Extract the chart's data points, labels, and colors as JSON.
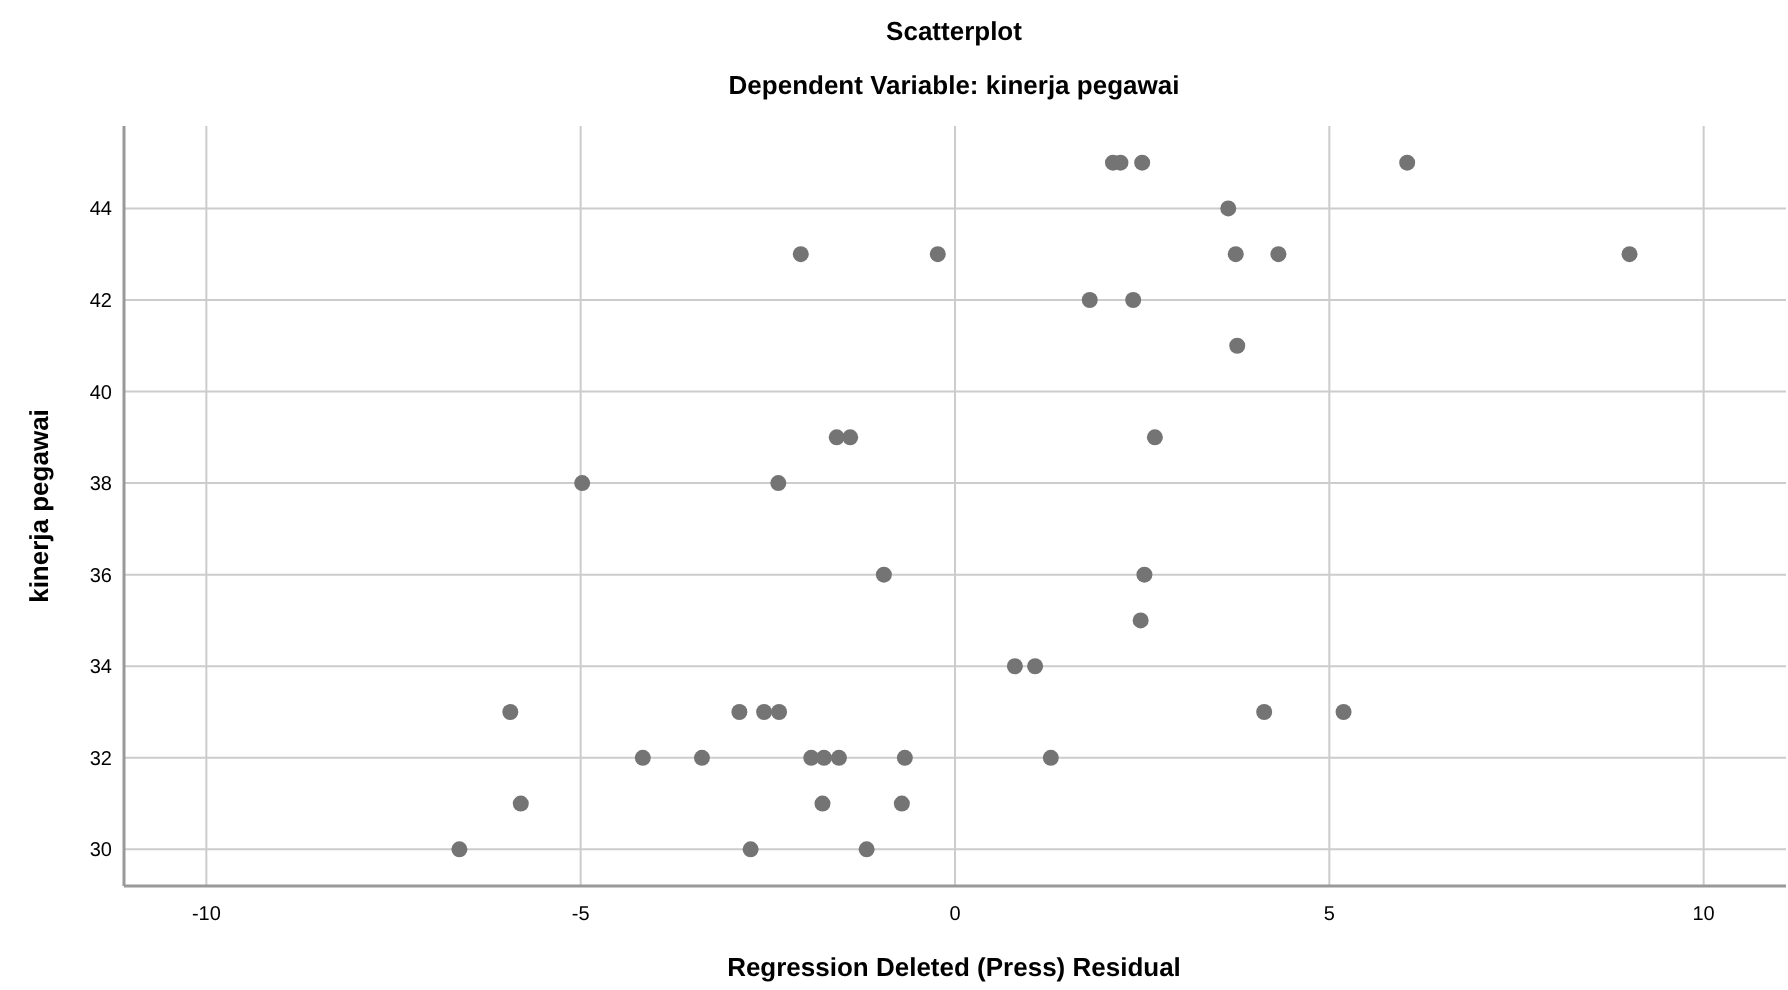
{
  "chart_data": {
    "type": "scatter",
    "title": "Scatterplot",
    "subtitle": "Dependent Variable: kinerja pegawai",
    "xlabel": "Regression Deleted (Press) Residual",
    "ylabel": "kinerja pegawai",
    "x": [
      2.11,
      2.21,
      2.5,
      6.04,
      3.65,
      -2.06,
      -0.23,
      3.75,
      4.32,
      9.01,
      1.8,
      2.38,
      3.77,
      -1.58,
      -1.4,
      2.67,
      -4.98,
      -2.36,
      -0.95,
      2.53,
      2.48,
      0.8,
      1.07,
      -5.94,
      -2.88,
      -2.55,
      -2.35,
      4.13,
      5.19,
      -4.17,
      -3.38,
      -1.92,
      -1.75,
      -1.55,
      -0.67,
      1.28,
      -5.8,
      -1.77,
      -0.71,
      -6.62,
      -2.73,
      -1.18
    ],
    "values": [
      45,
      45,
      45,
      45,
      44,
      43,
      43,
      43,
      43,
      43,
      42,
      42,
      41,
      39,
      39,
      39,
      38,
      38,
      36,
      36,
      35,
      34,
      34,
      33,
      33,
      33,
      33,
      33,
      33,
      32,
      32,
      32,
      32,
      32,
      32,
      32,
      31,
      31,
      31,
      30,
      30,
      30
    ],
    "color": "#747474",
    "marker": "circle",
    "grid": true,
    "xlim": [
      -11.1,
      11.1
    ],
    "xticks": [
      -10,
      -5,
      0,
      5,
      10
    ],
    "ylim": [
      29.2,
      45.8
    ],
    "yticks": [
      30,
      32,
      34,
      36,
      38,
      40,
      42,
      44
    ]
  }
}
